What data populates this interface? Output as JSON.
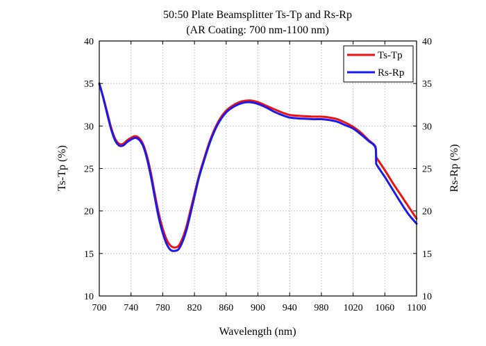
{
  "chart_data": {
    "type": "line",
    "title": "50:50 Plate Beamsplitter Ts-Tp and Rs-Rp",
    "subtitle": "(AR Coating: 700 nm-1100 nm)",
    "xlabel": "Wavelength (nm)",
    "ylabel": "Ts-Tp (%)",
    "ylabel_right": "Rs-Rp (%)",
    "xlim": [
      700,
      1100
    ],
    "ylim": [
      10,
      40
    ],
    "x_ticks": [
      700,
      740,
      780,
      820,
      860,
      900,
      940,
      980,
      1020,
      1060,
      1100
    ],
    "y_ticks": [
      10,
      15,
      20,
      25,
      30,
      35,
      40
    ],
    "grid": true,
    "legend_position": "top-right",
    "series": [
      {
        "name": "Ts-Tp",
        "color": "#ee1111",
        "x": [
          700,
          705,
          710,
          715,
          720,
          725,
          730,
          735,
          740,
          745,
          750,
          755,
          760,
          765,
          770,
          775,
          780,
          785,
          790,
          795,
          800,
          805,
          810,
          815,
          820,
          825,
          830,
          840,
          850,
          860,
          870,
          880,
          890,
          900,
          910,
          920,
          930,
          940,
          950,
          960,
          970,
          980,
          990,
          1000,
          1010,
          1020,
          1030,
          1040,
          1048,
          1049,
          1050,
          1060,
          1070,
          1080,
          1090,
          1100
        ],
        "y": [
          35.0,
          33.4,
          31.6,
          29.8,
          28.5,
          27.9,
          27.9,
          28.3,
          28.6,
          28.8,
          28.6,
          27.9,
          26.5,
          24.5,
          22.0,
          19.7,
          17.9,
          16.6,
          15.9,
          15.7,
          15.9,
          16.8,
          18.2,
          20.1,
          22.0,
          23.9,
          25.5,
          28.4,
          30.5,
          31.8,
          32.5,
          32.9,
          33.0,
          32.8,
          32.4,
          32.0,
          31.6,
          31.3,
          31.2,
          31.15,
          31.1,
          31.1,
          31.0,
          30.8,
          30.4,
          29.9,
          29.2,
          28.3,
          27.6,
          26.5,
          26.2,
          24.8,
          23.3,
          21.9,
          20.5,
          19.1
        ]
      },
      {
        "name": "Rs-Rp",
        "color": "#1a1aee",
        "x": [
          700,
          705,
          710,
          715,
          720,
          725,
          730,
          735,
          740,
          745,
          750,
          755,
          760,
          765,
          770,
          775,
          780,
          785,
          790,
          795,
          800,
          805,
          810,
          815,
          820,
          825,
          830,
          840,
          850,
          860,
          870,
          880,
          890,
          900,
          910,
          920,
          930,
          940,
          950,
          960,
          970,
          980,
          990,
          1000,
          1010,
          1020,
          1030,
          1040,
          1048,
          1049,
          1050,
          1060,
          1070,
          1080,
          1090,
          1100
        ],
        "y": [
          35.0,
          33.3,
          31.4,
          29.6,
          28.3,
          27.7,
          27.7,
          28.1,
          28.4,
          28.6,
          28.4,
          27.7,
          26.2,
          24.1,
          21.6,
          19.2,
          17.4,
          16.1,
          15.4,
          15.3,
          15.5,
          16.4,
          17.8,
          19.7,
          21.7,
          23.7,
          25.3,
          28.2,
          30.3,
          31.6,
          32.3,
          32.7,
          32.8,
          32.6,
          32.2,
          31.7,
          31.3,
          31.0,
          30.9,
          30.85,
          30.8,
          30.8,
          30.7,
          30.5,
          30.1,
          29.7,
          29.0,
          28.2,
          27.5,
          25.8,
          25.4,
          24.0,
          22.5,
          21.0,
          19.6,
          18.5
        ]
      }
    ]
  }
}
